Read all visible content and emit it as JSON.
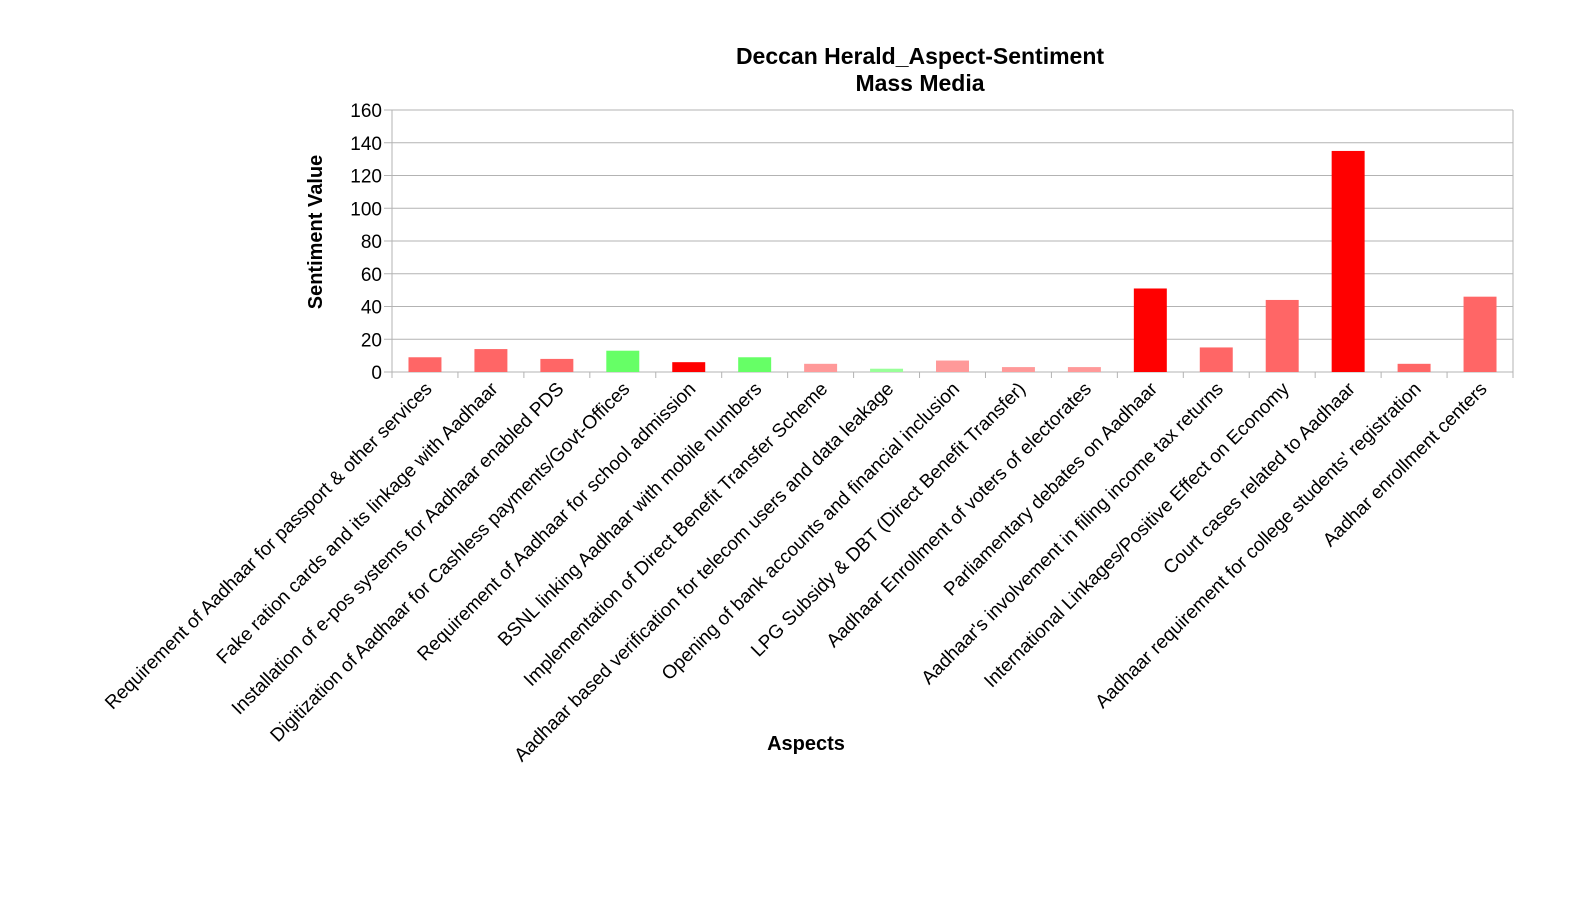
{
  "chart_data": {
    "type": "bar",
    "title": "Deccan Herald_Aspect-Sentiment",
    "subtitle": "Mass Media",
    "xlabel": "Aspects",
    "ylabel": "Sentiment Value",
    "ylim": [
      0,
      160
    ],
    "yticks": [
      "0",
      "20",
      "40",
      "60",
      "80",
      "100",
      "120",
      "140",
      "160"
    ],
    "grid": true,
    "legend": "none",
    "categories": [
      "Requirement of Aadhaar for passport & other services",
      "Fake ration cards and its linkage with Aadhaar",
      "Installation of e-pos systems for Aadhaar enabled PDS",
      "Digitization of Aadhaar for Cashless payments/Govt-Offices",
      "Requirement of Aadhaar for school admission",
      "BSNL linking Aadhaar with mobile numbers",
      "Implementation of Direct Benefit Transfer Scheme",
      "Aadhaar based verification for telecom users and data leakage",
      "Opening of bank accounts and financial inclusion",
      "LPG Subsidy & DBT (Direct Benefit Transfer)",
      "Aadhaar Enrollment of voters of electorates",
      "Parliamentary debates on Aadhaar",
      "Aadhaar's involvement in filing income tax returns",
      "International Linkages/Positive Effect on Economy",
      "Court cases related to Aadhaar",
      "Aadhaar requirement for college students' registration",
      "Aadhar enrollment centers"
    ],
    "values": [
      9,
      14,
      8,
      13,
      6,
      9,
      5,
      2,
      7,
      3,
      3,
      51,
      15,
      44,
      135,
      5,
      46
    ],
    "colors": [
      "#ff6666",
      "#ff6666",
      "#ff6666",
      "#66ff66",
      "#ff0000",
      "#66ff66",
      "#ff9999",
      "#99ff99",
      "#ff9999",
      "#ff9999",
      "#ff9999",
      "#ff0000",
      "#ff6666",
      "#ff6666",
      "#ff0000",
      "#ff6666",
      "#ff6666"
    ]
  }
}
